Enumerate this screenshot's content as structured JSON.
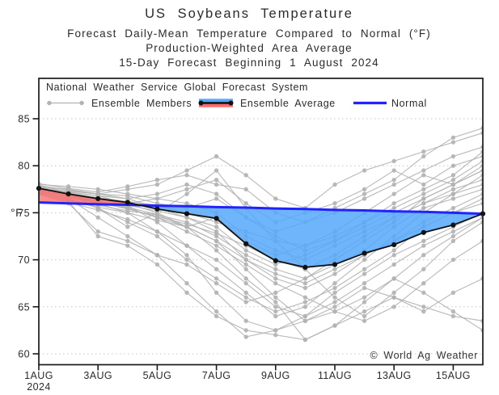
{
  "title": "US Soybeans Temperature",
  "subtitle1": "Forecast Daily-Mean Temperature Compared to Normal (°F)",
  "subtitle2": "Production-Weighted Area Average",
  "subtitle3": "15-Day Forecast Beginning 1 August 2024",
  "watermark": "© World Ag Weather",
  "legend": {
    "header": "National Weather Service Global Forecast System",
    "members_label": "Ensemble Members",
    "average_label": "Ensemble Average",
    "normal_label": "Normal"
  },
  "y_axis": {
    "unit_label": "°F",
    "ticks": [
      60,
      65,
      70,
      75,
      80,
      85
    ]
  },
  "x_axis": {
    "tick_days": [
      1,
      3,
      5,
      7,
      9,
      11,
      13,
      15
    ],
    "tick_labels": [
      "1AUG",
      "3AUG",
      "5AUG",
      "7AUG",
      "9AUG",
      "11AUG",
      "13AUG",
      "15AUG"
    ],
    "year_label": "2024"
  },
  "colors": {
    "normal_line": "#2222ff",
    "average_line": "#111111",
    "member_gray": "#b3b3b3",
    "fill_below_normal": "#55a8fa",
    "fill_above_normal": "#ff6b6b",
    "grid": "#c4c4c4",
    "frame": "#1a1a1a"
  },
  "chart_data": {
    "type": "line",
    "title": "US Soybeans Temperature",
    "ylabel": "°F",
    "ylim": [
      58.7,
      89.3
    ],
    "grid": "dotted horizontal at 5°F steps",
    "legend_position": "top-left inside plot",
    "x_days_august_2024": [
      1,
      2,
      3,
      4,
      5,
      6,
      7,
      8,
      9,
      10,
      11,
      12,
      13,
      14,
      15,
      16
    ],
    "series": [
      {
        "name": "Ensemble Average",
        "values": [
          77.6,
          77.0,
          76.5,
          76.1,
          75.4,
          74.9,
          74.4,
          71.7,
          69.9,
          69.2,
          69.5,
          70.7,
          71.6,
          72.9,
          73.7,
          74.9
        ]
      },
      {
        "name": "Normal",
        "values": [
          76.1,
          76.0,
          75.9,
          75.85,
          75.75,
          75.7,
          75.6,
          75.55,
          75.45,
          75.4,
          75.3,
          75.25,
          75.15,
          75.1,
          75.0,
          74.9
        ]
      }
    ],
    "shading": {
      "above_normal": "red fill between Ensemble Average and Normal where average exceeds normal (Aug 1 - ~Aug 4.4)",
      "below_normal": "blue fill between Ensemble Average and Normal where average is below normal (~Aug 4.4 - Aug 16)"
    },
    "ensemble_members": [
      [
        77.8,
        77.5,
        77.0,
        77.5,
        78.0,
        79.5,
        81.0,
        79.0,
        76.5,
        75.5,
        78.0,
        79.5,
        80.5,
        81.5,
        82.5,
        83.5
      ],
      [
        77.5,
        77.0,
        76.5,
        76.0,
        76.5,
        77.5,
        78.5,
        76.0,
        74.0,
        75.0,
        76.0,
        77.5,
        79.5,
        78.0,
        80.0,
        81.0
      ],
      [
        77.6,
        76.8,
        76.2,
        75.5,
        74.5,
        73.5,
        74.5,
        72.0,
        70.5,
        71.5,
        73.0,
        75.0,
        77.0,
        79.0,
        78.0,
        79.5
      ],
      [
        77.2,
        76.2,
        72.5,
        71.5,
        69.5,
        66.5,
        64.0,
        62.5,
        62.0,
        61.5,
        63.0,
        64.5,
        66.0,
        65.0,
        64.0,
        63.5
      ],
      [
        77.4,
        76.5,
        75.5,
        74.0,
        72.5,
        70.0,
        68.0,
        66.0,
        64.5,
        65.5,
        67.0,
        69.0,
        71.0,
        73.5,
        75.0,
        76.0
      ],
      [
        77.9,
        77.2,
        76.8,
        76.5,
        75.5,
        74.5,
        73.0,
        70.0,
        68.0,
        67.0,
        68.5,
        70.5,
        72.0,
        74.0,
        75.5,
        77.0
      ],
      [
        77.3,
        76.8,
        76.0,
        75.0,
        73.0,
        70.5,
        66.5,
        63.5,
        62.5,
        63.5,
        65.0,
        67.0,
        66.0,
        64.5,
        66.5,
        68.0
      ],
      [
        78.0,
        77.8,
        77.5,
        77.0,
        76.5,
        76.0,
        75.0,
        72.5,
        71.0,
        70.0,
        71.5,
        73.0,
        74.5,
        76.0,
        77.5,
        78.5
      ],
      [
        77.1,
        76.4,
        75.8,
        75.2,
        74.8,
        74.0,
        72.5,
        70.5,
        69.0,
        68.0,
        69.5,
        71.0,
        73.5,
        75.5,
        76.5,
        77.5
      ],
      [
        77.7,
        77.0,
        76.5,
        75.8,
        74.0,
        71.5,
        69.0,
        66.5,
        64.0,
        65.0,
        67.5,
        70.0,
        72.5,
        75.0,
        77.0,
        79.0
      ],
      [
        77.5,
        77.3,
        77.0,
        76.8,
        76.0,
        75.5,
        76.5,
        74.5,
        72.5,
        71.0,
        72.0,
        73.5,
        75.0,
        76.5,
        78.0,
        79.5
      ],
      [
        77.8,
        77.0,
        75.5,
        73.5,
        75.0,
        77.0,
        79.5,
        75.5,
        72.0,
        69.0,
        66.0,
        64.0,
        66.5,
        69.0,
        72.0,
        74.0
      ],
      [
        77.2,
        76.6,
        76.0,
        75.5,
        74.5,
        73.0,
        71.5,
        69.5,
        67.5,
        66.0,
        64.5,
        63.5,
        65.0,
        67.5,
        70.0,
        72.0
      ],
      [
        77.0,
        76.0,
        73.0,
        72.0,
        70.5,
        69.5,
        67.5,
        65.5,
        66.5,
        68.0,
        70.0,
        72.0,
        74.0,
        76.5,
        78.0,
        80.0
      ],
      [
        77.6,
        77.1,
        76.6,
        76.2,
        75.8,
        75.0,
        74.0,
        73.0,
        72.0,
        71.5,
        72.5,
        74.0,
        75.5,
        77.0,
        78.5,
        80.5
      ],
      [
        77.4,
        76.9,
        76.3,
        75.6,
        74.8,
        73.5,
        72.0,
        69.0,
        66.0,
        63.5,
        64.5,
        66.0,
        68.0,
        66.5,
        64.5,
        62.5
      ],
      [
        77.9,
        77.4,
        77.0,
        76.5,
        77.0,
        78.0,
        77.0,
        74.5,
        73.0,
        74.0,
        75.5,
        77.0,
        78.5,
        81.0,
        83.0,
        84.0
      ],
      [
        77.3,
        76.5,
        74.5,
        72.5,
        70.5,
        67.5,
        64.5,
        61.8,
        62.5,
        64.0,
        66.5,
        68.5,
        70.5,
        72.0,
        73.5,
        75.0
      ],
      [
        77.5,
        76.8,
        76.2,
        75.8,
        75.2,
        74.5,
        73.5,
        71.0,
        69.5,
        70.5,
        72.0,
        74.0,
        76.0,
        77.5,
        79.0,
        81.5
      ],
      [
        77.1,
        76.3,
        75.6,
        75.0,
        74.2,
        73.5,
        72.0,
        70.0,
        68.5,
        67.5,
        69.0,
        70.5,
        72.0,
        73.5,
        75.0,
        76.5
      ],
      [
        77.7,
        77.2,
        76.8,
        76.0,
        75.0,
        73.5,
        71.0,
        68.0,
        65.5,
        61.5,
        63.0,
        65.5,
        68.0,
        70.5,
        72.5,
        74.5
      ],
      [
        78.1,
        77.6,
        77.2,
        77.8,
        78.5,
        79.0,
        78.0,
        77.5,
        75.0,
        74.0,
        75.0,
        76.5,
        78.0,
        79.5,
        81.0,
        82.0
      ],
      [
        77.0,
        76.1,
        75.3,
        74.3,
        73.0,
        71.5,
        70.0,
        67.5,
        65.0,
        64.0,
        65.5,
        67.5,
        69.5,
        71.5,
        73.0,
        74.5
      ],
      [
        77.4,
        76.7,
        76.1,
        75.4,
        74.6,
        73.8,
        72.8,
        71.5,
        70.0,
        69.0,
        70.5,
        72.5,
        74.5,
        76.0,
        77.0,
        78.0
      ]
    ]
  }
}
